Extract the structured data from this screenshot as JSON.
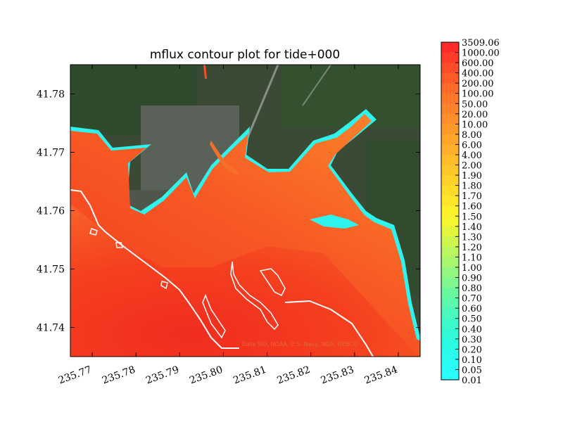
{
  "chart_data": {
    "type": "heatmap",
    "title": "mflux contour plot for tide+000",
    "xlabel": "",
    "ylabel": "",
    "xlim": [
      235.765,
      235.845
    ],
    "ylim": [
      41.735,
      41.785
    ],
    "x_ticks": [
      235.77,
      235.78,
      235.79,
      235.8,
      235.81,
      235.82,
      235.83,
      235.84
    ],
    "x_tick_labels": [
      "235.77",
      "235.78",
      "235.79",
      "235.80",
      "235.81",
      "235.82",
      "235.83",
      "235.84"
    ],
    "y_ticks": [
      41.74,
      41.75,
      41.76,
      41.77,
      41.78
    ],
    "y_tick_labels": [
      "41.74",
      "41.75",
      "41.76",
      "41.77",
      "41.78"
    ],
    "colorbar": {
      "levels": [
        "3509.06",
        "1000.00",
        "600.00",
        "400.00",
        "200.00",
        "100.00",
        "50.00",
        "20.00",
        "10.00",
        "8.00",
        "6.00",
        "4.00",
        "2.00",
        "1.90",
        "1.80",
        "1.70",
        "1.60",
        "1.50",
        "1.40",
        "1.30",
        "1.20",
        "1.10",
        "1.00",
        "0.90",
        "0.80",
        "0.70",
        "0.60",
        "0.50",
        "0.40",
        "0.30",
        "0.20",
        "0.10",
        "0.05",
        "0.01"
      ],
      "colors": [
        "#ff2a2a",
        "#ff3b2a",
        "#ff4c2a",
        "#ff5c2a",
        "#ff6a2a",
        "#ff772a",
        "#ff832a",
        "#ff8f2a",
        "#ff9a2a",
        "#ffa52a",
        "#ffb02a",
        "#ffbb2a",
        "#ffc62a",
        "#ffd12a",
        "#ffdc2a",
        "#ffe62a",
        "#fff02a",
        "#f6f52f",
        "#e2f53f",
        "#cef64f",
        "#baf65f",
        "#a6f76f",
        "#92f77f",
        "#7ef88f",
        "#6af89f",
        "#5af9ae",
        "#4cf9bc",
        "#3efaca",
        "#32fad6",
        "#2afbe2",
        "#2afbec",
        "#2afcf5",
        "#2afdfc"
      ]
    },
    "attribution": "Data SIO, NOAA, U.S. Navy, NGA, GEBCO",
    "background": "satellite imagery",
    "grid": false
  }
}
